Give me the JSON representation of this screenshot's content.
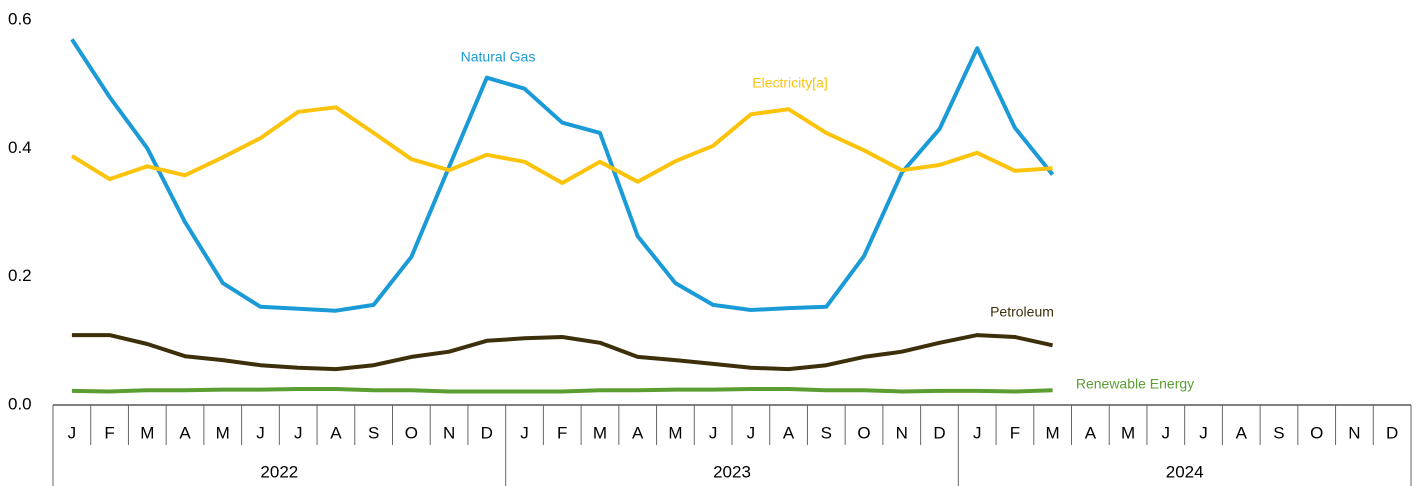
{
  "chart_data": {
    "type": "line",
    "categories": [
      "J",
      "F",
      "M",
      "A",
      "M",
      "J",
      "J",
      "A",
      "S",
      "O",
      "N",
      "D",
      "J",
      "F",
      "M",
      "A",
      "M",
      "J",
      "J",
      "A",
      "S",
      "O",
      "N",
      "D",
      "J",
      "F",
      "M",
      "A",
      "M",
      "J",
      "J",
      "A",
      "S",
      "O",
      "N",
      "D"
    ],
    "years": [
      "2022",
      "2023",
      "2024"
    ],
    "ylim": [
      0,
      0.6
    ],
    "yticks": [
      {
        "value": 0,
        "label": "0.0"
      },
      0.2,
      0.4,
      0.6
    ],
    "grid": false,
    "series": [
      {
        "name": "Natural Gas",
        "color": "#1a9ad6",
        "values": [
          0.57,
          0.48,
          0.4,
          0.285,
          0.19,
          0.153,
          0.15,
          0.147,
          0.156,
          0.231,
          0.371,
          0.51,
          0.493,
          0.44,
          0.424,
          0.263,
          0.19,
          0.156,
          0.148,
          0.151,
          0.153,
          0.232,
          0.362,
          0.43,
          0.556,
          0.432,
          0.359,
          null,
          null,
          null,
          null,
          null,
          null,
          null,
          null,
          null
        ]
      },
      {
        "name": "Electricity[a]",
        "color": "#fcc30b",
        "values": [
          0.388,
          0.352,
          0.372,
          0.358,
          0.386,
          0.416,
          0.457,
          0.464,
          0.424,
          0.383,
          0.366,
          0.39,
          0.379,
          0.346,
          0.379,
          0.348,
          0.38,
          0.404,
          0.453,
          0.461,
          0.424,
          0.397,
          0.366,
          0.374,
          0.393,
          0.365,
          0.369,
          null,
          null,
          null,
          null,
          null,
          null,
          null,
          null,
          null
        ]
      },
      {
        "name": "Petroleum",
        "color": "#3d2f0a",
        "values": [
          0.109,
          0.109,
          0.095,
          0.076,
          0.07,
          0.062,
          0.058,
          0.056,
          0.062,
          0.075,
          0.083,
          0.1,
          0.104,
          0.106,
          0.097,
          0.075,
          0.07,
          0.064,
          0.058,
          0.056,
          0.062,
          0.075,
          0.083,
          0.097,
          0.109,
          0.106,
          0.093,
          null,
          null,
          null,
          null,
          null,
          null,
          null,
          null,
          null
        ]
      },
      {
        "name": "Renewable Energy",
        "color": "#5a9e32",
        "values": [
          0.022,
          0.021,
          0.023,
          0.023,
          0.024,
          0.024,
          0.025,
          0.025,
          0.023,
          0.023,
          0.021,
          0.021,
          0.021,
          0.021,
          0.023,
          0.023,
          0.024,
          0.024,
          0.025,
          0.025,
          0.023,
          0.023,
          0.021,
          0.022,
          0.022,
          0.021,
          0.023,
          null,
          null,
          null,
          null,
          null,
          null,
          null,
          null,
          null
        ]
      }
    ]
  }
}
